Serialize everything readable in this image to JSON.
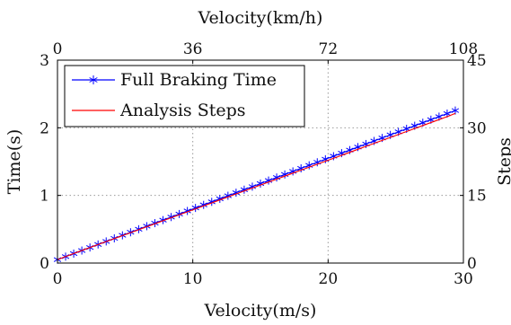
{
  "chart_data": {
    "type": "line",
    "title": "",
    "xlabel": "Velocity(m/s)",
    "ylabel": "Time(s)",
    "x2label": "Velocity(km/h)",
    "y2label": "Steps",
    "xlim": [
      0,
      30
    ],
    "ylim": [
      0,
      3
    ],
    "x2lim": [
      0,
      108
    ],
    "y2lim": [
      0,
      45
    ],
    "xticks": [
      0,
      10,
      20,
      30
    ],
    "yticks": [
      0,
      1,
      2,
      3
    ],
    "x2ticks": [
      0,
      36,
      72,
      108
    ],
    "y2ticks": [
      0,
      15,
      30,
      45
    ],
    "grid": true,
    "legend_position": "top-left",
    "series": [
      {
        "name": "Full Braking Time",
        "color": "#0000ff",
        "marker": "asterisk",
        "axis": "left",
        "x": [
          0,
          0.6,
          1.2,
          1.8,
          2.4,
          3,
          3.6,
          4.2,
          4.8,
          5.4,
          6,
          6.6,
          7.2,
          7.8,
          8.4,
          9,
          9.6,
          10.2,
          10.8,
          11.4,
          12,
          12.6,
          13.2,
          13.8,
          14.4,
          15,
          15.6,
          16.2,
          16.8,
          17.4,
          18,
          18.6,
          19.2,
          19.8,
          20.4,
          21,
          21.6,
          22.2,
          22.8,
          23.4,
          24,
          24.6,
          25.2,
          25.8,
          26.4,
          27,
          27.6,
          28.2,
          28.8,
          29.4
        ],
        "y": [
          0.05,
          0.095,
          0.14,
          0.185,
          0.23,
          0.275,
          0.32,
          0.365,
          0.41,
          0.455,
          0.5,
          0.545,
          0.59,
          0.635,
          0.68,
          0.725,
          0.77,
          0.815,
          0.86,
          0.905,
          0.95,
          0.995,
          1.04,
          1.085,
          1.13,
          1.175,
          1.22,
          1.265,
          1.31,
          1.355,
          1.4,
          1.445,
          1.49,
          1.535,
          1.58,
          1.625,
          1.67,
          1.715,
          1.76,
          1.805,
          1.85,
          1.895,
          1.94,
          1.985,
          2.03,
          2.075,
          2.12,
          2.165,
          2.21,
          2.255
        ]
      },
      {
        "name": "Analysis Steps",
        "color": "#ff0000",
        "marker": "none",
        "axis": "right",
        "x": [
          0,
          1,
          2,
          3,
          4,
          5,
          6,
          7,
          8,
          9,
          10,
          11,
          12,
          13,
          14,
          15,
          16,
          17,
          18,
          19,
          20,
          21,
          22,
          23,
          24,
          25,
          26,
          27,
          28,
          29,
          29.4
        ],
        "y": [
          0.75,
          1.9,
          3.0,
          4.1,
          5.2,
          6.3,
          7.4,
          8.5,
          9.6,
          10.7,
          11.8,
          12.9,
          14.0,
          15.1,
          16.2,
          17.3,
          18.4,
          19.5,
          20.6,
          21.7,
          22.8,
          23.9,
          25.0,
          26.1,
          27.2,
          28.3,
          29.4,
          30.5,
          31.6,
          32.7,
          33.2
        ]
      }
    ]
  }
}
